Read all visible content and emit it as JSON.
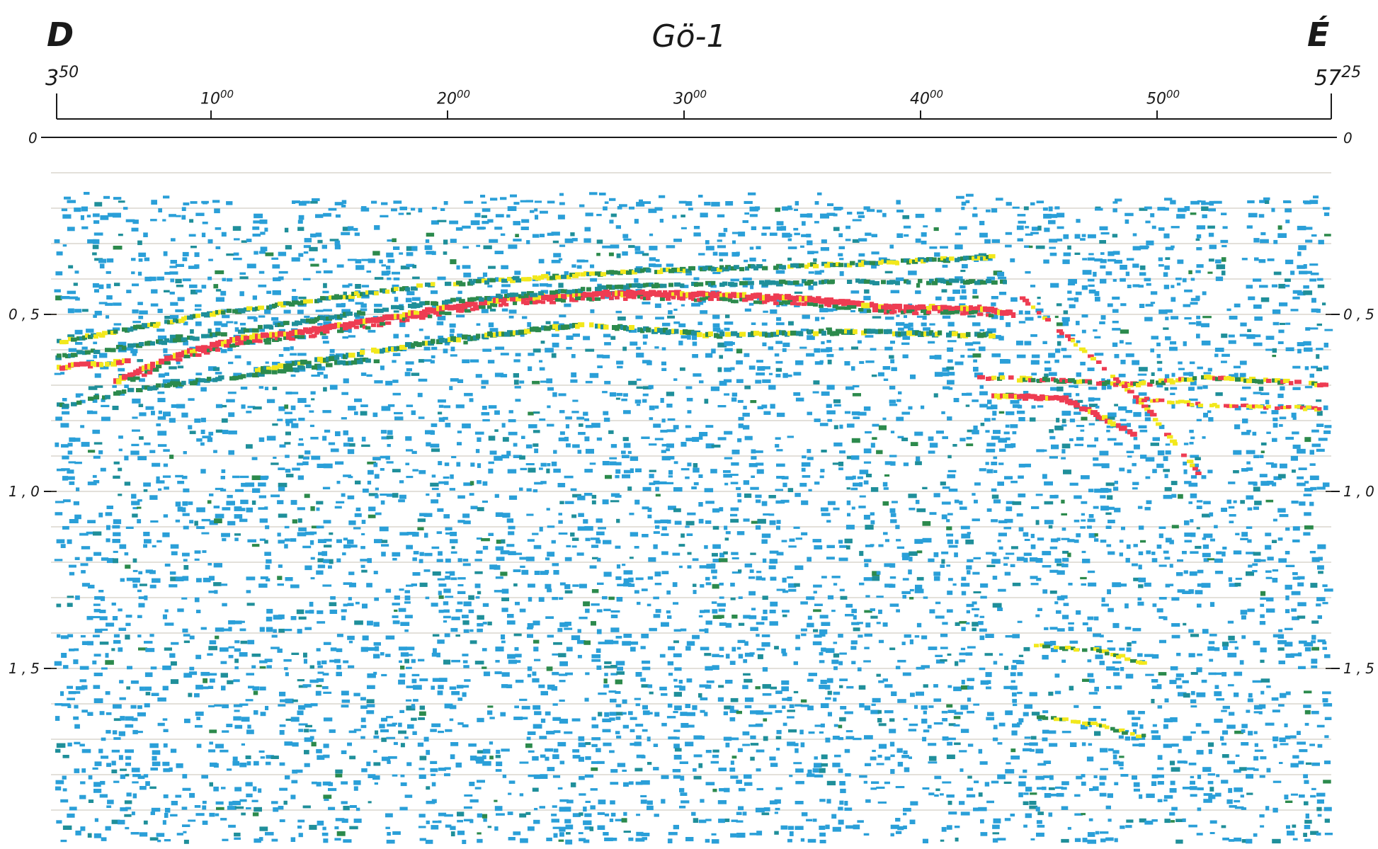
{
  "title": "Gö-1",
  "left_dir": "D",
  "right_dir": "É",
  "stations": {
    "start": {
      "main": "3",
      "sup": "50"
    },
    "end": {
      "main": "57",
      "sup": "25"
    },
    "ticks": [
      {
        "main": "10",
        "sup": "00"
      },
      {
        "main": "20",
        "sup": "00"
      },
      {
        "main": "30",
        "sup": "00"
      },
      {
        "main": "40",
        "sup": "00"
      },
      {
        "main": "50",
        "sup": "00"
      }
    ]
  },
  "time_labels": {
    "left": [
      "0",
      "0,5",
      "1,0",
      "1,5"
    ],
    "right": [
      "0",
      "0,5",
      "1,0",
      "1,5"
    ]
  },
  "colors": {
    "blue": "#2a9fd8",
    "teal": "#1f8f9a",
    "green": "#2c8a4c",
    "yellow": "#f2e81c",
    "red": "#ee3c52",
    "gridline": "#9a8f7a"
  }
}
